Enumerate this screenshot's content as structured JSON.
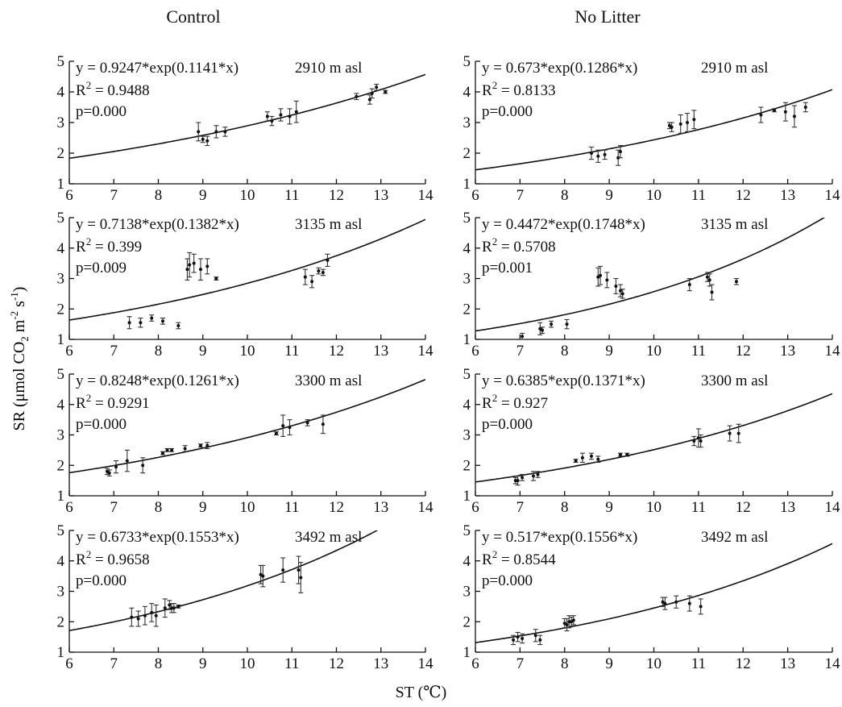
{
  "col_titles": [
    "Control",
    "No Litter"
  ],
  "ylabel_main": "SR (μmol CO",
  "ylabel_sub2": "2",
  "ylabel_m": " m",
  "ylabel_exp1": "-2",
  "ylabel_s": " s",
  "ylabel_exp2": "-1",
  "ylabel_close": ")",
  "xlabel": "ST (℃)",
  "x_ticks": [
    "6",
    "7",
    "8",
    "9",
    "10",
    "11",
    "12",
    "13",
    "14"
  ],
  "y_ticks": [
    "1",
    "2",
    "3",
    "4",
    "5"
  ],
  "chart_data": [
    {
      "type": "scatter",
      "column": "Control",
      "elevation": "2910 m asl",
      "equation": "y = 0.9247*exp(0.1141*x)",
      "r2_label": "R",
      "r2_sup": "2",
      "r2_value": " = 0.9488",
      "p": "p=0.000",
      "a": 0.9247,
      "b": 0.1141,
      "xlim": [
        6,
        14
      ],
      "ylim": [
        1,
        5
      ],
      "points": [
        [
          8.9,
          2.7,
          0.3
        ],
        [
          9.0,
          2.45,
          0.1
        ],
        [
          9.1,
          2.4,
          0.15
        ],
        [
          9.3,
          2.7,
          0.2
        ],
        [
          9.5,
          2.7,
          0.15
        ],
        [
          10.45,
          3.2,
          0.15
        ],
        [
          10.55,
          3.05,
          0.15
        ],
        [
          10.75,
          3.25,
          0.2
        ],
        [
          10.95,
          3.2,
          0.25
        ],
        [
          11.1,
          3.35,
          0.35
        ],
        [
          12.45,
          3.85,
          0.1
        ],
        [
          12.75,
          3.75,
          0.15
        ],
        [
          12.8,
          3.95,
          0.15
        ],
        [
          12.9,
          4.15,
          0.1
        ],
        [
          13.1,
          4.0,
          0.05
        ]
      ]
    },
    {
      "type": "scatter",
      "column": "No Litter",
      "elevation": "2910 m asl",
      "equation": "y = 0.673*exp(0.1286*x)",
      "r2_label": "R",
      "r2_sup": "2",
      "r2_value": " = 0.8133",
      "p": "p=0.000",
      "a": 0.673,
      "b": 0.1286,
      "xlim": [
        6,
        14
      ],
      "ylim": [
        1,
        5
      ],
      "points": [
        [
          8.6,
          2.0,
          0.2
        ],
        [
          8.75,
          1.9,
          0.2
        ],
        [
          8.9,
          1.95,
          0.15
        ],
        [
          9.2,
          1.85,
          0.25
        ],
        [
          9.25,
          2.05,
          0.2
        ],
        [
          10.35,
          2.9,
          0.1
        ],
        [
          10.4,
          2.85,
          0.15
        ],
        [
          10.6,
          2.95,
          0.3
        ],
        [
          10.75,
          3.0,
          0.3
        ],
        [
          10.9,
          3.1,
          0.3
        ],
        [
          12.4,
          3.25,
          0.25
        ],
        [
          12.7,
          3.4,
          0.05
        ],
        [
          12.95,
          3.35,
          0.3
        ],
        [
          13.15,
          3.2,
          0.35
        ],
        [
          13.4,
          3.5,
          0.15
        ]
      ]
    },
    {
      "type": "scatter",
      "column": "Control",
      "elevation": "3135 m asl",
      "equation": "y = 0.7138*exp(0.1382*x)",
      "r2_label": "R",
      "r2_sup": "2",
      "r2_value": " = 0.399",
      "p": "p=0.009",
      "a": 0.7138,
      "b": 0.1382,
      "xlim": [
        6,
        14
      ],
      "ylim": [
        1,
        5
      ],
      "points": [
        [
          7.35,
          1.55,
          0.2
        ],
        [
          7.6,
          1.55,
          0.15
        ],
        [
          7.85,
          1.7,
          0.1
        ],
        [
          8.1,
          1.6,
          0.1
        ],
        [
          8.45,
          1.45,
          0.1
        ],
        [
          8.65,
          3.3,
          0.35
        ],
        [
          8.7,
          3.45,
          0.4
        ],
        [
          8.8,
          3.5,
          0.3
        ],
        [
          8.95,
          3.3,
          0.35
        ],
        [
          9.1,
          3.4,
          0.25
        ],
        [
          9.3,
          3.0,
          0.05
        ],
        [
          11.3,
          3.05,
          0.25
        ],
        [
          11.45,
          2.9,
          0.2
        ],
        [
          11.6,
          3.25,
          0.1
        ],
        [
          11.7,
          3.2,
          0.1
        ],
        [
          11.8,
          3.6,
          0.2
        ]
      ]
    },
    {
      "type": "scatter",
      "column": "No Litter",
      "elevation": "3135 m asl",
      "equation": "y = 0.4472*exp(0.1748*x)",
      "r2_label": "R",
      "r2_sup": "2",
      "r2_value": " = 0.5708",
      "p": "p=0.001",
      "a": 0.4472,
      "b": 0.1748,
      "xlim": [
        6,
        14
      ],
      "ylim": [
        1,
        5
      ],
      "points": [
        [
          7.05,
          1.1,
          0.1
        ],
        [
          7.45,
          1.35,
          0.2
        ],
        [
          7.5,
          1.3,
          0.1
        ],
        [
          7.7,
          1.5,
          0.1
        ],
        [
          8.05,
          1.5,
          0.15
        ],
        [
          8.75,
          3.05,
          0.3
        ],
        [
          8.8,
          3.1,
          0.3
        ],
        [
          8.95,
          2.95,
          0.25
        ],
        [
          9.15,
          2.75,
          0.25
        ],
        [
          9.25,
          2.6,
          0.2
        ],
        [
          9.3,
          2.5,
          0.15
        ],
        [
          10.8,
          2.8,
          0.2
        ],
        [
          11.2,
          3.05,
          0.15
        ],
        [
          11.25,
          2.95,
          0.2
        ],
        [
          11.3,
          2.55,
          0.25
        ],
        [
          11.85,
          2.9,
          0.1
        ]
      ]
    },
    {
      "type": "scatter",
      "column": "Control",
      "elevation": "3300 m asl",
      "equation": "y = 0.8248*exp(0.1261*x)",
      "r2_label": "R",
      "r2_sup": "2",
      "r2_value": " = 0.9291",
      "p": "p=0.000",
      "a": 0.8248,
      "b": 0.1261,
      "xlim": [
        6,
        14
      ],
      "ylim": [
        1,
        5
      ],
      "points": [
        [
          6.85,
          1.8,
          0.1
        ],
        [
          6.9,
          1.75,
          0.1
        ],
        [
          7.05,
          1.95,
          0.2
        ],
        [
          7.3,
          2.15,
          0.35
        ],
        [
          7.65,
          2.0,
          0.25
        ],
        [
          8.1,
          2.4,
          0.05
        ],
        [
          8.2,
          2.5,
          0.05
        ],
        [
          8.3,
          2.5,
          0.05
        ],
        [
          8.6,
          2.55,
          0.1
        ],
        [
          8.95,
          2.65,
          0.05
        ],
        [
          9.1,
          2.65,
          0.1
        ],
        [
          10.65,
          3.05,
          0.05
        ],
        [
          10.8,
          3.3,
          0.35
        ],
        [
          10.95,
          3.25,
          0.25
        ],
        [
          11.35,
          3.4,
          0.1
        ],
        [
          11.7,
          3.35,
          0.3
        ]
      ]
    },
    {
      "type": "scatter",
      "column": "No Litter",
      "elevation": "3300 m asl",
      "equation": "y = 0.6385*exp(0.1371*x)",
      "r2_label": "R",
      "r2_sup": "2",
      "r2_value": " = 0.927",
      "p": "p=0.000",
      "a": 0.6385,
      "b": 0.1371,
      "xlim": [
        6,
        14
      ],
      "ylim": [
        1,
        5
      ],
      "points": [
        [
          6.9,
          1.5,
          0.1
        ],
        [
          6.95,
          1.5,
          0.15
        ],
        [
          7.05,
          1.6,
          0.1
        ],
        [
          7.3,
          1.65,
          0.15
        ],
        [
          7.4,
          1.7,
          0.1
        ],
        [
          8.25,
          2.15,
          0.05
        ],
        [
          8.4,
          2.25,
          0.15
        ],
        [
          8.6,
          2.3,
          0.1
        ],
        [
          8.75,
          2.2,
          0.1
        ],
        [
          9.25,
          2.35,
          0.05
        ],
        [
          9.4,
          2.35,
          0.05
        ],
        [
          10.9,
          2.8,
          0.15
        ],
        [
          11.0,
          2.9,
          0.3
        ],
        [
          11.05,
          2.8,
          0.2
        ],
        [
          11.7,
          3.05,
          0.25
        ],
        [
          11.9,
          3.05,
          0.3
        ]
      ]
    },
    {
      "type": "scatter",
      "column": "Control",
      "elevation": "3492 m asl",
      "equation": "y = 0.6733*exp(0.1553*x)",
      "r2_label": "R",
      "r2_sup": "2",
      "r2_value": " = 0.9658",
      "p": "p=0.000",
      "a": 0.6733,
      "b": 0.1553,
      "xlim": [
        6,
        14
      ],
      "ylim": [
        1,
        5
      ],
      "points": [
        [
          7.4,
          2.15,
          0.3
        ],
        [
          7.55,
          2.1,
          0.25
        ],
        [
          7.7,
          2.2,
          0.3
        ],
        [
          7.85,
          2.3,
          0.3
        ],
        [
          7.95,
          2.2,
          0.35
        ],
        [
          8.15,
          2.45,
          0.3
        ],
        [
          8.25,
          2.55,
          0.15
        ],
        [
          8.3,
          2.45,
          0.15
        ],
        [
          8.35,
          2.45,
          0.15
        ],
        [
          8.45,
          2.5,
          0.05
        ],
        [
          10.3,
          3.55,
          0.3
        ],
        [
          10.35,
          3.5,
          0.35
        ],
        [
          10.8,
          3.7,
          0.4
        ],
        [
          11.15,
          3.7,
          0.45
        ],
        [
          11.2,
          3.45,
          0.5
        ]
      ]
    },
    {
      "type": "scatter",
      "column": "No Litter",
      "elevation": "3492 m asl",
      "equation": "y = 0.517*exp(0.1556*x)",
      "r2_label": "R",
      "r2_sup": "2",
      "r2_value": " = 0.8544",
      "p": "p=0.000",
      "a": 0.517,
      "b": 0.1556,
      "xlim": [
        6,
        14
      ],
      "ylim": [
        1,
        5
      ],
      "points": [
        [
          6.85,
          1.4,
          0.15
        ],
        [
          6.95,
          1.5,
          0.15
        ],
        [
          7.05,
          1.45,
          0.15
        ],
        [
          7.35,
          1.55,
          0.2
        ],
        [
          7.45,
          1.4,
          0.15
        ],
        [
          8.0,
          1.95,
          0.15
        ],
        [
          8.05,
          1.9,
          0.2
        ],
        [
          8.1,
          2.0,
          0.2
        ],
        [
          8.15,
          2.0,
          0.15
        ],
        [
          8.2,
          2.05,
          0.15
        ],
        [
          10.2,
          2.65,
          0.15
        ],
        [
          10.25,
          2.6,
          0.2
        ],
        [
          10.5,
          2.65,
          0.2
        ],
        [
          10.8,
          2.6,
          0.25
        ],
        [
          11.05,
          2.5,
          0.25
        ]
      ]
    }
  ]
}
